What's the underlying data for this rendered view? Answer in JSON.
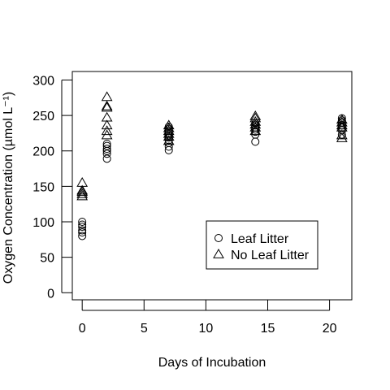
{
  "chart_data": {
    "type": "scatter",
    "title": "",
    "xlabel": "Days of Incubation",
    "ylabel": "Oxygen Concentration (µmol L⁻¹)",
    "xlim": [
      -0.8,
      21.8
    ],
    "ylim": [
      -10,
      312
    ],
    "xticks": [
      0,
      5,
      10,
      15,
      20
    ],
    "yticks": [
      0,
      50,
      100,
      150,
      200,
      250,
      300
    ],
    "grid": false,
    "legend_position": "bottom-right",
    "series": [
      {
        "name": "Leaf Litter",
        "marker": "circle",
        "points": [
          [
            0,
            80
          ],
          [
            0,
            85
          ],
          [
            0,
            88
          ],
          [
            0,
            93
          ],
          [
            0,
            96
          ],
          [
            0,
            100
          ],
          [
            2,
            189
          ],
          [
            2,
            196
          ],
          [
            2,
            200
          ],
          [
            2,
            203
          ],
          [
            2,
            207
          ],
          [
            2,
            210
          ],
          [
            7,
            201
          ],
          [
            7,
            206
          ],
          [
            7,
            211
          ],
          [
            7,
            215
          ],
          [
            7,
            219
          ],
          [
            7,
            222
          ],
          [
            7,
            225
          ],
          [
            7,
            228
          ],
          [
            7,
            231
          ],
          [
            7,
            234
          ],
          [
            14,
            213
          ],
          [
            14,
            223
          ],
          [
            14,
            227
          ],
          [
            14,
            230
          ],
          [
            14,
            233
          ],
          [
            14,
            236
          ],
          [
            14,
            239
          ],
          [
            21,
            223
          ],
          [
            21,
            229
          ],
          [
            21,
            233
          ],
          [
            21,
            236
          ],
          [
            21,
            240
          ],
          [
            21,
            243
          ],
          [
            21,
            246
          ]
        ]
      },
      {
        "name": "No Leaf Litter",
        "marker": "triangle",
        "points": [
          [
            0,
            136
          ],
          [
            0,
            139
          ],
          [
            0,
            142
          ],
          [
            0,
            144
          ],
          [
            0,
            155
          ],
          [
            2,
            222
          ],
          [
            2,
            228
          ],
          [
            2,
            236
          ],
          [
            2,
            247
          ],
          [
            2,
            261
          ],
          [
            2,
            263
          ],
          [
            2,
            276
          ],
          [
            7,
            214
          ],
          [
            7,
            220
          ],
          [
            7,
            224
          ],
          [
            7,
            228
          ],
          [
            7,
            232
          ],
          [
            7,
            236
          ],
          [
            14,
            228
          ],
          [
            14,
            233
          ],
          [
            14,
            237
          ],
          [
            14,
            241
          ],
          [
            14,
            246
          ],
          [
            14,
            249
          ],
          [
            21,
            218
          ],
          [
            21,
            222
          ],
          [
            21,
            233
          ],
          [
            21,
            236
          ],
          [
            21,
            240
          ],
          [
            21,
            244
          ]
        ]
      }
    ]
  }
}
